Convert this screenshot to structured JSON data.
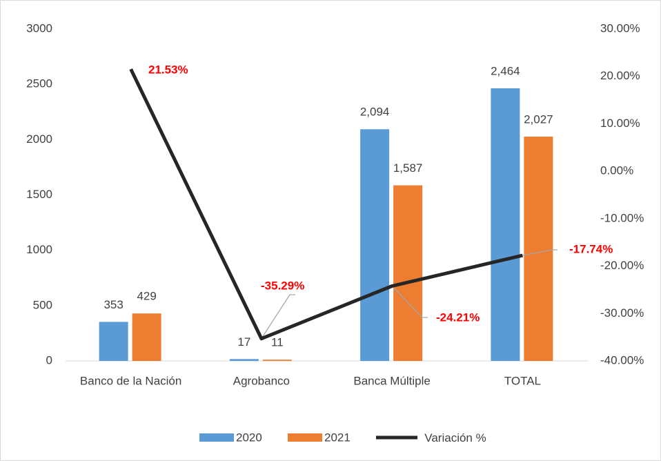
{
  "chart_data": {
    "type": "bar+line",
    "categories": [
      "Banco de la Nación",
      "Agrobanco",
      "Banca Múltiple",
      "TOTAL"
    ],
    "series": [
      {
        "name": "2020",
        "color": "#5b9bd5",
        "type": "bar",
        "values": [
          353,
          17,
          2094,
          2464
        ],
        "value_labels": [
          "353",
          "17",
          "2,094",
          "2,464"
        ]
      },
      {
        "name": "2021",
        "color": "#ed7d31",
        "type": "bar",
        "values": [
          429,
          11,
          1587,
          2027
        ],
        "value_labels": [
          "429",
          "11",
          "1,587",
          "2,027"
        ]
      },
      {
        "name": "Variación %",
        "color": "#262626",
        "type": "line",
        "axis": "y2",
        "values": [
          21.53,
          -35.29,
          -24.21,
          -17.74
        ],
        "value_labels": [
          "21.53%",
          "-35.29%",
          "-24.21%",
          "-17.74%"
        ]
      }
    ],
    "ylim": [
      0,
      3000
    ],
    "yticks": [
      0,
      500,
      1000,
      1500,
      2000,
      2500,
      3000
    ],
    "y2lim": [
      -40,
      30
    ],
    "y2ticks": [
      {
        "value": -40,
        "label": "-40.00%"
      },
      {
        "value": -30,
        "label": "-30.00%"
      },
      {
        "value": -20,
        "label": "-20.00%"
      },
      {
        "value": -10,
        "label": "-10.00%"
      },
      {
        "value": 0,
        "label": "0.00%"
      },
      {
        "value": 10,
        "label": "10.00%"
      },
      {
        "value": 20,
        "label": "20.00%"
      },
      {
        "value": 30,
        "label": "30.00%"
      }
    ],
    "legend": "bottom"
  }
}
